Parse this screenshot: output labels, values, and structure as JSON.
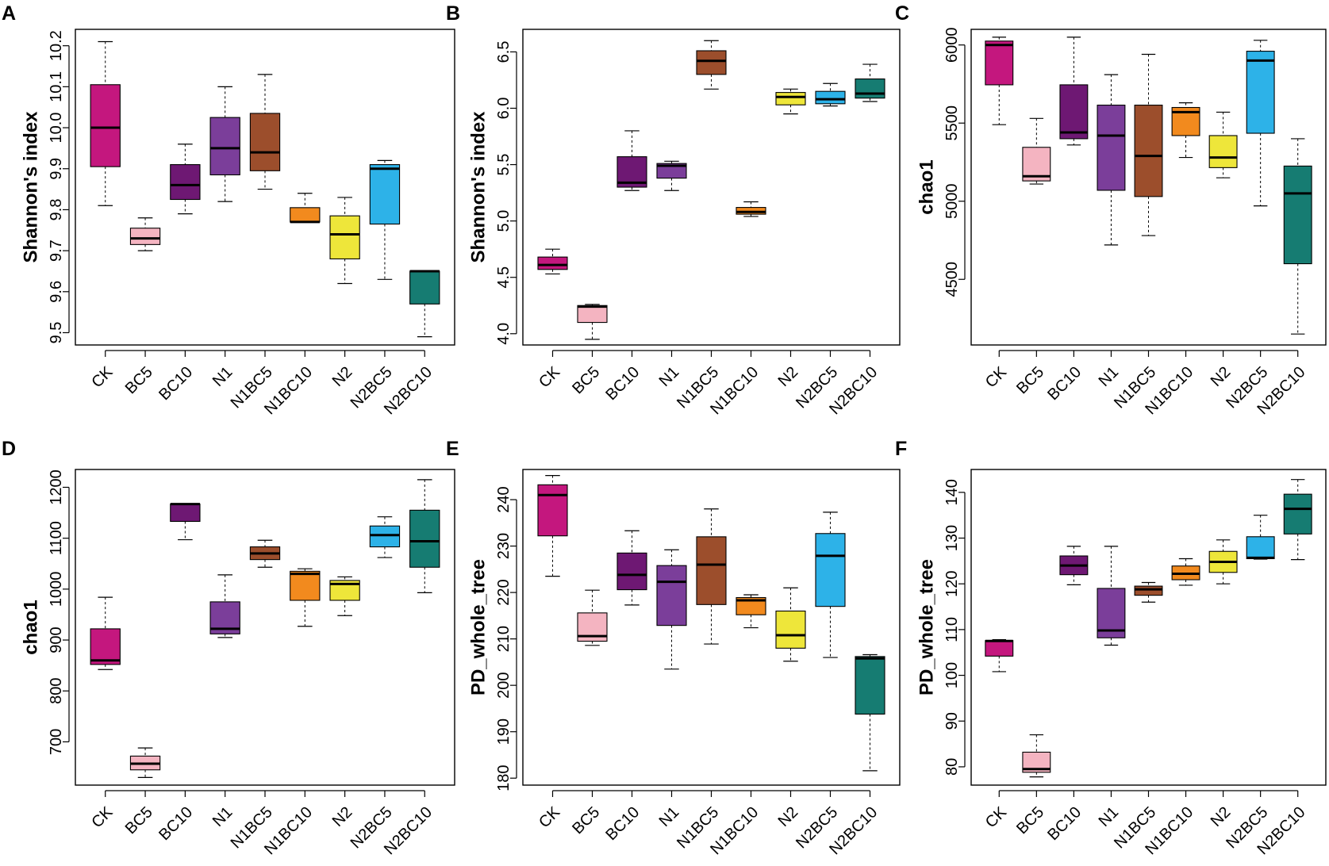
{
  "groups": [
    {
      "name": "CK",
      "color": "#C4177E"
    },
    {
      "name": "BC5",
      "color": "#F4B4C1"
    },
    {
      "name": "BC10",
      "color": "#6E1873"
    },
    {
      "name": "N1",
      "color": "#7B3E9A"
    },
    {
      "name": "N1BC5",
      "color": "#9C4E2C"
    },
    {
      "name": "N1BC10",
      "color": "#F28A1E"
    },
    {
      "name": "N2",
      "color": "#EEE63A"
    },
    {
      "name": "N2BC5",
      "color": "#2DB2E8"
    },
    {
      "name": "N2BC10",
      "color": "#167C72"
    }
  ],
  "chart_data": [
    {
      "panel": "A",
      "type": "boxplot",
      "ylabel": "Shannon's index",
      "ylim": [
        9.47,
        10.24
      ],
      "yticks": [
        9.5,
        9.6,
        9.7,
        9.8,
        9.9,
        10.0,
        10.1,
        10.2
      ],
      "yticklabels": [
        "9.5",
        "9.6",
        "9.7",
        "9.8",
        "9.9",
        "10.0",
        "10.1",
        "10.2"
      ],
      "categories": [
        "CK",
        "BC5",
        "BC10",
        "N1",
        "N1BC5",
        "N1BC10",
        "N2",
        "N2BC5",
        "N2BC10"
      ],
      "boxes": [
        {
          "min": 9.81,
          "q1": 9.905,
          "median": 10.0,
          "q3": 10.105,
          "max": 10.21
        },
        {
          "min": 9.7,
          "q1": 9.715,
          "median": 9.73,
          "q3": 9.755,
          "max": 9.78
        },
        {
          "min": 9.79,
          "q1": 9.825,
          "median": 9.86,
          "q3": 9.91,
          "max": 9.96
        },
        {
          "min": 9.82,
          "q1": 9.885,
          "median": 9.95,
          "q3": 10.025,
          "max": 10.1
        },
        {
          "min": 9.85,
          "q1": 9.895,
          "median": 9.94,
          "q3": 10.035,
          "max": 10.13
        },
        {
          "min": 9.77,
          "q1": 9.77,
          "median": 9.77,
          "q3": 9.805,
          "max": 9.84
        },
        {
          "min": 9.62,
          "q1": 9.68,
          "median": 9.74,
          "q3": 9.785,
          "max": 9.83
        },
        {
          "min": 9.63,
          "q1": 9.765,
          "median": 9.9,
          "q3": 9.91,
          "max": 9.92
        },
        {
          "min": 9.49,
          "q1": 9.57,
          "median": 9.65,
          "q3": 9.65,
          "max": 9.65
        }
      ]
    },
    {
      "panel": "B",
      "type": "boxplot",
      "ylabel": "Shannon's index",
      "ylim": [
        3.9,
        6.7
      ],
      "yticks": [
        4.0,
        4.5,
        5.0,
        5.5,
        6.0,
        6.5
      ],
      "yticklabels": [
        "4.0",
        "4.5",
        "5.0",
        "5.5",
        "6.0",
        "6.5"
      ],
      "categories": [
        "CK",
        "BC5",
        "BC10",
        "N1",
        "N1BC5",
        "N1BC10",
        "N2",
        "N2BC5",
        "N2BC10"
      ],
      "boxes": [
        {
          "min": 4.53,
          "q1": 4.57,
          "median": 4.61,
          "q3": 4.68,
          "max": 4.75
        },
        {
          "min": 3.95,
          "q1": 4.1,
          "median": 4.24,
          "q3": 4.25,
          "max": 4.26
        },
        {
          "min": 5.27,
          "q1": 5.3,
          "median": 5.34,
          "q3": 5.57,
          "max": 5.8
        },
        {
          "min": 5.27,
          "q1": 5.38,
          "median": 5.49,
          "q3": 5.51,
          "max": 5.53
        },
        {
          "min": 6.17,
          "q1": 6.3,
          "median": 6.42,
          "q3": 6.51,
          "max": 6.6
        },
        {
          "min": 5.04,
          "q1": 5.06,
          "median": 5.08,
          "q3": 5.12,
          "max": 5.17
        },
        {
          "min": 5.95,
          "q1": 6.03,
          "median": 6.1,
          "q3": 6.14,
          "max": 6.17
        },
        {
          "min": 6.02,
          "q1": 6.04,
          "median": 6.08,
          "q3": 6.15,
          "max": 6.22
        },
        {
          "min": 6.06,
          "q1": 6.09,
          "median": 6.13,
          "q3": 6.26,
          "max": 6.39
        }
      ]
    },
    {
      "panel": "C",
      "type": "boxplot",
      "ylabel": "chao1",
      "ylim": [
        4080,
        6100
      ],
      "yticks": [
        4500,
        5000,
        5500,
        6000
      ],
      "yticklabels": [
        "4500",
        "5000",
        "5500",
        "6000"
      ],
      "categories": [
        "CK",
        "BC5",
        "BC10",
        "N1",
        "N1BC5",
        "N1BC10",
        "N2",
        "N2BC5",
        "N2BC10"
      ],
      "boxes": [
        {
          "min": 5490,
          "q1": 5745,
          "median": 6000,
          "q3": 6025,
          "max": 6050
        },
        {
          "min": 5110,
          "q1": 5130,
          "median": 5160,
          "q3": 5345,
          "max": 5530
        },
        {
          "min": 5360,
          "q1": 5400,
          "median": 5440,
          "q3": 5745,
          "max": 6050
        },
        {
          "min": 4720,
          "q1": 5070,
          "median": 5420,
          "q3": 5615,
          "max": 5810
        },
        {
          "min": 4780,
          "q1": 5030,
          "median": 5290,
          "q3": 5615,
          "max": 5940
        },
        {
          "min": 5280,
          "q1": 5420,
          "median": 5570,
          "q3": 5600,
          "max": 5630
        },
        {
          "min": 5150,
          "q1": 5215,
          "median": 5280,
          "q3": 5420,
          "max": 5570
        },
        {
          "min": 4970,
          "q1": 5435,
          "median": 5900,
          "q3": 5960,
          "max": 6030
        },
        {
          "min": 4150,
          "q1": 4600,
          "median": 5050,
          "q3": 5225,
          "max": 5400
        }
      ]
    },
    {
      "panel": "D",
      "type": "boxplot",
      "ylabel": "chao1",
      "ylim": [
        615,
        1235
      ],
      "yticks": [
        700,
        800,
        900,
        1000,
        1100,
        1200
      ],
      "yticklabels": [
        "700",
        "800",
        "900",
        "1000",
        "1100",
        "1200"
      ],
      "categories": [
        "CK",
        "BC5",
        "BC10",
        "N1",
        "N1BC5",
        "N1BC10",
        "N2",
        "N2BC5",
        "N2BC10"
      ],
      "boxes": [
        {
          "min": 842,
          "q1": 852,
          "median": 860,
          "q3": 922,
          "max": 984
        },
        {
          "min": 630,
          "q1": 645,
          "median": 657,
          "q3": 672,
          "max": 688
        },
        {
          "min": 1097,
          "q1": 1133,
          "median": 1167,
          "q3": 1167,
          "max": 1167
        },
        {
          "min": 905,
          "q1": 912,
          "median": 922,
          "q3": 975,
          "max": 1028
        },
        {
          "min": 1043,
          "q1": 1058,
          "median": 1070,
          "q3": 1083,
          "max": 1096
        },
        {
          "min": 927,
          "q1": 978,
          "median": 1030,
          "q3": 1035,
          "max": 1040
        },
        {
          "min": 948,
          "q1": 978,
          "median": 1010,
          "q3": 1017,
          "max": 1024
        },
        {
          "min": 1062,
          "q1": 1083,
          "median": 1106,
          "q3": 1124,
          "max": 1142
        },
        {
          "min": 993,
          "q1": 1043,
          "median": 1094,
          "q3": 1155,
          "max": 1215
        }
      ]
    },
    {
      "panel": "E",
      "type": "boxplot",
      "ylabel": "PD_whole_tree",
      "ylim": [
        178.5,
        246.5
      ],
      "yticks": [
        180,
        190,
        200,
        210,
        220,
        230,
        240
      ],
      "yticklabels": [
        "180",
        "190",
        "200",
        "210",
        "220",
        "230",
        "240"
      ],
      "categories": [
        "CK",
        "BC5",
        "BC10",
        "N1",
        "N1BC5",
        "N1BC10",
        "N2",
        "N2BC5",
        "N2BC10"
      ],
      "boxes": [
        {
          "min": 223.5,
          "q1": 232.2,
          "median": 241.0,
          "q3": 243.2,
          "max": 245.2
        },
        {
          "min": 208.6,
          "q1": 209.5,
          "median": 210.6,
          "q3": 215.6,
          "max": 220.5
        },
        {
          "min": 217.3,
          "q1": 220.6,
          "median": 223.8,
          "q3": 228.5,
          "max": 233.3
        },
        {
          "min": 203.5,
          "q1": 212.9,
          "median": 222.3,
          "q3": 225.8,
          "max": 229.2
        },
        {
          "min": 208.9,
          "q1": 217.4,
          "median": 226.0,
          "q3": 232.0,
          "max": 238.0
        },
        {
          "min": 212.4,
          "q1": 215.2,
          "median": 218.3,
          "q3": 218.9,
          "max": 219.5
        },
        {
          "min": 205.2,
          "q1": 208.0,
          "median": 210.8,
          "q3": 216.0,
          "max": 221.0
        },
        {
          "min": 206.0,
          "q1": 217.0,
          "median": 227.9,
          "q3": 232.7,
          "max": 237.3
        },
        {
          "min": 181.6,
          "q1": 193.8,
          "median": 205.8,
          "q3": 206.2,
          "max": 206.6
        }
      ]
    },
    {
      "panel": "F",
      "type": "boxplot",
      "ylabel": "PD_whole_tree",
      "ylim": [
        76,
        145
      ],
      "yticks": [
        80,
        90,
        100,
        110,
        120,
        130,
        140
      ],
      "yticklabels": [
        "80",
        "90",
        "100",
        "110",
        "120",
        "130",
        "140"
      ],
      "categories": [
        "CK",
        "BC5",
        "BC10",
        "N1",
        "N1BC5",
        "N1BC10",
        "N2",
        "N2BC5",
        "N2BC10"
      ],
      "boxes": [
        {
          "min": 100.8,
          "q1": 104.2,
          "median": 107.5,
          "q3": 107.6,
          "max": 107.8
        },
        {
          "min": 77.8,
          "q1": 78.8,
          "median": 79.5,
          "q3": 83.2,
          "max": 87.0
        },
        {
          "min": 119.8,
          "q1": 122.0,
          "median": 124.0,
          "q3": 126.1,
          "max": 128.2
        },
        {
          "min": 106.6,
          "q1": 108.2,
          "median": 109.8,
          "q3": 119.0,
          "max": 128.2
        },
        {
          "min": 116.0,
          "q1": 117.5,
          "median": 118.8,
          "q3": 119.5,
          "max": 120.3
        },
        {
          "min": 119.7,
          "q1": 120.9,
          "median": 122.2,
          "q3": 123.9,
          "max": 125.5
        },
        {
          "min": 120.0,
          "q1": 122.5,
          "median": 124.8,
          "q3": 127.1,
          "max": 129.6
        },
        {
          "min": 125.4,
          "q1": 125.5,
          "median": 125.7,
          "q3": 130.3,
          "max": 135.0
        },
        {
          "min": 125.3,
          "q1": 130.9,
          "median": 136.4,
          "q3": 139.6,
          "max": 142.8
        }
      ]
    }
  ]
}
